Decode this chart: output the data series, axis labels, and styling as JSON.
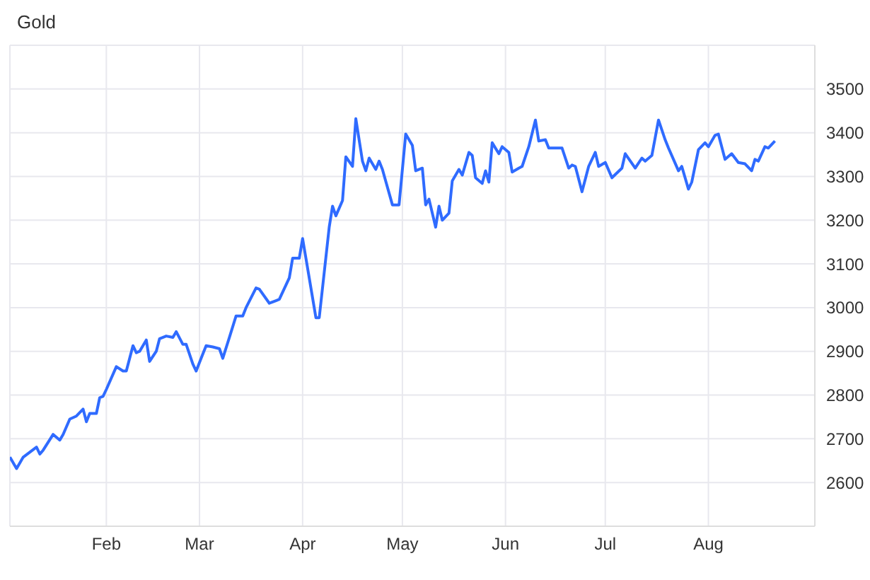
{
  "chart_data": {
    "type": "line",
    "title": "Gold",
    "grid": true,
    "marker": "none",
    "line_style": "solid",
    "xlim": [
      "--01-03",
      "--09-02"
    ],
    "xticks": [
      {
        "value": "--02-01",
        "label": "Feb"
      },
      {
        "value": "--03-01",
        "label": "Mar"
      },
      {
        "value": "--04-01",
        "label": "Apr"
      },
      {
        "value": "--05-01",
        "label": "May"
      },
      {
        "value": "--06-01",
        "label": "Jun"
      },
      {
        "value": "--07-01",
        "label": "Jul"
      },
      {
        "value": "--08-01",
        "label": "Aug"
      }
    ],
    "ylim": [
      2500,
      3600
    ],
    "yticks": [
      {
        "value": 2500,
        "label": null
      },
      2600,
      2700,
      2800,
      2900,
      3000,
      3100,
      3200,
      3300,
      3400,
      3500,
      {
        "value": 3600,
        "label": null
      }
    ],
    "x": [
      "--01-03",
      "--01-05",
      "--01-07",
      "--01-11",
      "--01-12",
      "--01-13",
      "--01-16",
      "--01-18",
      "--01-19",
      "--01-21",
      "--01-23",
      "--01-25",
      "--01-26",
      "--01-27",
      "--01-29",
      "--01-30",
      "--01-31",
      "--02-01",
      "--02-04",
      "--02-06",
      "--02-07",
      "--02-09",
      "--02-10",
      "--02-11",
      "--02-13",
      "--02-14",
      "--02-16",
      "--02-17",
      "--02-19",
      "--02-21",
      "--02-22",
      "--02-24",
      "--02-25",
      "--02-27",
      "--02-28",
      "--03-02",
      "--03-03",
      "--03-05",
      "--03-07",
      "--03-08",
      "--03-10",
      "--03-12",
      "--03-14",
      "--03-15",
      "--03-18",
      "--03-19",
      "--03-22",
      "--03-24",
      "--03-25",
      "--03-28",
      "--03-29",
      "--03-31",
      "--04-01",
      "--04-02",
      "--04-05",
      "--04-06",
      "--04-09",
      "--04-10",
      "--04-11",
      "--04-13",
      "--04-14",
      "--04-16",
      "--04-17",
      "--04-19",
      "--04-20",
      "--04-21",
      "--04-23",
      "--04-24",
      "--04-25",
      "--04-28",
      "--04-30",
      "--05-02",
      "--05-04",
      "--05-05",
      "--05-07",
      "--05-08",
      "--05-09",
      "--05-11",
      "--05-12",
      "--05-13",
      "--05-15",
      "--05-16",
      "--05-18",
      "--05-19",
      "--05-21",
      "--05-22",
      "--05-23",
      "--05-25",
      "--05-26",
      "--05-27",
      "--05-28",
      "--05-30",
      "--05-31",
      "--06-02",
      "--06-03",
      "--06-05",
      "--06-06",
      "--06-08",
      "--06-10",
      "--06-11",
      "--06-13",
      "--06-14",
      "--06-18",
      "--06-20",
      "--06-21",
      "--06-22",
      "--06-24",
      "--06-26",
      "--06-28",
      "--06-29",
      "--07-01",
      "--07-03",
      "--07-06",
      "--07-07",
      "--07-10",
      "--07-12",
      "--07-13",
      "--07-15",
      "--07-17",
      "--07-19",
      "--07-20",
      "--07-23",
      "--07-24",
      "--07-26",
      "--07-27",
      "--07-29",
      "--07-31",
      "--08-01",
      "--08-03",
      "--08-04",
      "--08-06",
      "--08-08",
      "--08-10",
      "--08-12",
      "--08-14",
      "--08-15",
      "--08-16",
      "--08-18",
      "--08-19",
      "--08-21"
    ],
    "series": [
      {
        "color": "#2f6bff",
        "values": [
          2658,
          2632,
          2658,
          2681,
          2665,
          2674,
          2710,
          2697,
          2710,
          2745,
          2752,
          2768,
          2739,
          2758,
          2758,
          2794,
          2797,
          2813,
          2865,
          2855,
          2855,
          2913,
          2897,
          2900,
          2926,
          2877,
          2900,
          2929,
          2935,
          2932,
          2945,
          2916,
          2916,
          2871,
          2855,
          2894,
          2913,
          2910,
          2906,
          2884,
          2932,
          2981,
          2981,
          3000,
          3045,
          3042,
          3010,
          3016,
          3019,
          3068,
          3113,
          3113,
          3158,
          3113,
          2977,
          2977,
          3184,
          3232,
          3210,
          3245,
          3345,
          3323,
          3432,
          3335,
          3313,
          3342,
          3316,
          3335,
          3316,
          3235,
          3235,
          3397,
          3371,
          3313,
          3319,
          3235,
          3248,
          3184,
          3232,
          3200,
          3216,
          3290,
          3316,
          3303,
          3355,
          3348,
          3297,
          3284,
          3313,
          3287,
          3377,
          3352,
          3368,
          3355,
          3310,
          3319,
          3323,
          3368,
          3429,
          3381,
          3384,
          3365,
          3365,
          3319,
          3326,
          3323,
          3265,
          3323,
          3355,
          3323,
          3332,
          3297,
          3319,
          3352,
          3319,
          3342,
          3335,
          3348,
          3429,
          3384,
          3365,
          3313,
          3323,
          3271,
          3287,
          3361,
          3377,
          3368,
          3394,
          3397,
          3339,
          3352,
          3332,
          3329,
          3313,
          3339,
          3335,
          3368,
          3365,
          3381
        ]
      }
    ]
  }
}
